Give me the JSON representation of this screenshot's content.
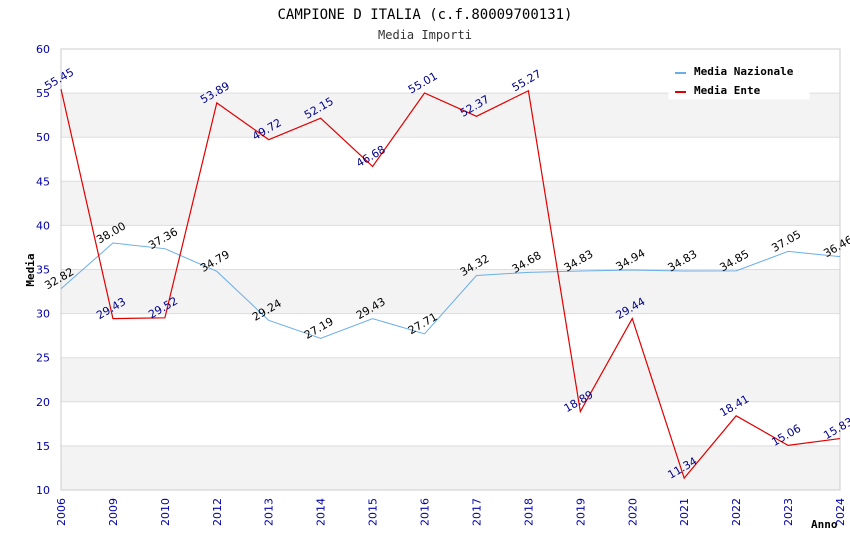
{
  "chart_data": {
    "type": "line",
    "title": "CAMPIONE D ITALIA (c.f.80009700131)",
    "subtitle": "Media Importi",
    "xlabel": "Anno",
    "ylabel": "Media",
    "ylim": [
      10,
      60
    ],
    "yticks": [
      "10",
      "15",
      "20",
      "25",
      "30",
      "35",
      "40",
      "45",
      "50",
      "55",
      "60"
    ],
    "categories": [
      "2006",
      "2009",
      "2010",
      "2012",
      "2013",
      "2014",
      "2015",
      "2016",
      "2017",
      "2018",
      "2019",
      "2020",
      "2021",
      "2022",
      "2023",
      "2024"
    ],
    "grid": true,
    "legend_position": "top-right",
    "series": [
      {
        "name": "Media Nazionale",
        "color": "#6aaee8",
        "values": [
          32.82,
          38.0,
          37.36,
          34.79,
          29.24,
          27.19,
          29.43,
          27.71,
          34.32,
          34.68,
          34.83,
          34.94,
          34.83,
          34.85,
          37.05,
          36.46
        ],
        "labels": [
          "32.82",
          "38.00",
          "37.36",
          "34.79",
          "29.24",
          "27.19",
          "29.43",
          "27.71",
          "34.32",
          "34.68",
          "34.83",
          "34.94",
          "34.83",
          "34.85",
          "37.05",
          "36.46"
        ]
      },
      {
        "name": "Media Ente",
        "color": "#e00000",
        "values": [
          55.45,
          29.43,
          29.52,
          53.89,
          49.72,
          52.15,
          46.68,
          55.01,
          52.37,
          55.27,
          18.89,
          29.44,
          11.34,
          18.41,
          15.06,
          15.83
        ],
        "labels": [
          "55.45",
          "29.43",
          "29.52",
          "53.89",
          "49.72",
          "52.15",
          "46.68",
          "55.01",
          "52.37",
          "55.27",
          "18.89",
          "29.44",
          "11.34",
          "18.41",
          "15.06",
          "15.83"
        ]
      }
    ]
  }
}
